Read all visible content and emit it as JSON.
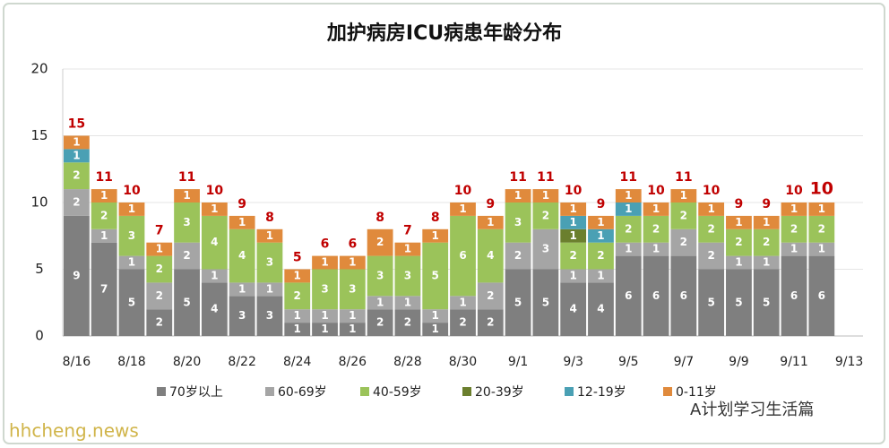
{
  "chart_data": {
    "type": "stacked_bar",
    "title": "加护病房ICU病患年龄分布",
    "categories": [
      "8/16",
      null,
      "8/18",
      null,
      "8/20",
      null,
      "8/22",
      null,
      "8/24",
      null,
      "8/26",
      null,
      "8/28",
      null,
      "8/30",
      null,
      "9/1",
      null,
      "9/3",
      null,
      "9/5",
      null,
      "9/7",
      null,
      "9/9",
      null,
      "9/11",
      null,
      "9/13"
    ],
    "series": [
      {
        "name": "70岁以上",
        "color": "#7f7f7f",
        "values": [
          9,
          7,
          5,
          2,
          5,
          4,
          3,
          3,
          1,
          1,
          1,
          2,
          2,
          1,
          2,
          2,
          5,
          5,
          4,
          4,
          6,
          6,
          6,
          5,
          5,
          5,
          6,
          6,
          null
        ]
      },
      {
        "name": "60-69岁",
        "color": "#a5a5a5",
        "values": [
          2,
          1,
          1,
          2,
          2,
          1,
          1,
          1,
          1,
          1,
          1,
          1,
          1,
          1,
          1,
          2,
          2,
          3,
          1,
          1,
          1,
          1,
          2,
          2,
          1,
          1,
          1,
          1,
          null
        ]
      },
      {
        "name": "40-59岁",
        "color": "#9bc35a",
        "values": [
          2,
          2,
          3,
          2,
          3,
          4,
          4,
          3,
          2,
          3,
          3,
          3,
          3,
          5,
          6,
          4,
          3,
          2,
          2,
          2,
          2,
          2,
          2,
          2,
          2,
          2,
          2,
          2,
          null
        ]
      },
      {
        "name": "20-39岁",
        "color": "#6b7f2e",
        "values": [
          null,
          null,
          null,
          null,
          null,
          null,
          null,
          null,
          null,
          null,
          null,
          null,
          null,
          null,
          null,
          null,
          null,
          null,
          1,
          null,
          null,
          null,
          null,
          null,
          null,
          null,
          null,
          null,
          null
        ]
      },
      {
        "name": "12-19岁",
        "color": "#4aa0b4",
        "values": [
          1,
          null,
          null,
          null,
          null,
          null,
          null,
          null,
          null,
          null,
          null,
          null,
          null,
          null,
          null,
          null,
          null,
          null,
          1,
          1,
          1,
          null,
          null,
          null,
          null,
          null,
          null,
          null,
          null
        ]
      },
      {
        "name": "0-11岁",
        "color": "#e08a3c",
        "values": [
          1,
          1,
          1,
          1,
          1,
          1,
          1,
          1,
          1,
          1,
          1,
          2,
          1,
          1,
          1,
          1,
          1,
          1,
          1,
          1,
          1,
          1,
          1,
          1,
          1,
          1,
          1,
          1,
          null
        ]
      }
    ],
    "totals": [
      15,
      11,
      10,
      7,
      11,
      10,
      9,
      8,
      5,
      6,
      6,
      8,
      7,
      8,
      10,
      9,
      11,
      11,
      10,
      9,
      11,
      10,
      11,
      10,
      9,
      9,
      10,
      10,
      null
    ],
    "ylim": [
      0,
      20
    ],
    "yticks": [
      0,
      5,
      10,
      15,
      20
    ],
    "grid": true,
    "watermark": "hhcheng.news",
    "source": "A计划学习生活篇"
  }
}
